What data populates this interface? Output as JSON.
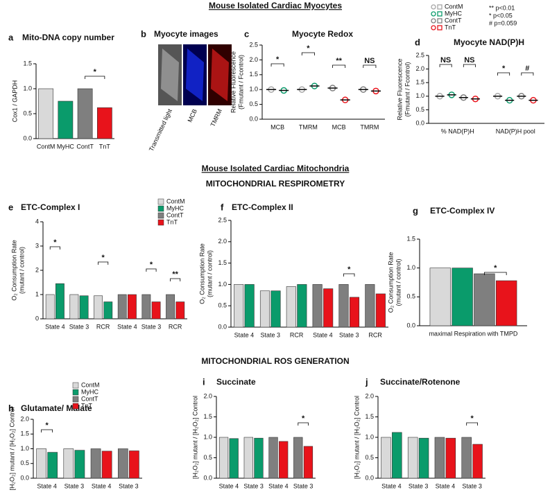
{
  "headings": [
    "Mouse Isolated Cardiac Myocytes",
    "Mouse Isolated Cardiac Mitochondria",
    "MITOCHONDRIAL RESPIROMETRY",
    "MITOCHONDRIAL ROS GENERATION"
  ],
  "significance": [
    "** p<0.01",
    "* p<0.05",
    "# p=0.059"
  ],
  "chart_data": [
    {
      "type": "bar",
      "panel": "a",
      "title": "Mito-DNA copy number",
      "ylabel": [
        "Cox1 / GAPDH"
      ],
      "categories": [
        "ContM",
        "MyHC",
        "ContT",
        "TnT"
      ],
      "values": [
        1.0,
        0.75,
        1.0,
        0.62
      ],
      "colors": [
        "#d9d9d9",
        "#0a9b6b",
        "#7f7f7f",
        "#e8131b"
      ],
      "ylim": [
        0,
        1.5
      ],
      "yticks": [
        {
          "value": 0,
          "label": "0.0"
        },
        0.5,
        {
          "value": 1,
          "label": "1.0"
        },
        1.5
      ],
      "annotations": [
        "*"
      ]
    },
    {
      "type": "images",
      "panel": "b",
      "title": "Myocyte images",
      "labels": [
        "Transmitted light",
        "MCB",
        "TMRM"
      ]
    },
    {
      "type": "dot",
      "panel": "c",
      "title": "Myocyte Redox",
      "ylabel": [
        "Relative Fluorescence",
        "(Fmutant / Fcontrol)"
      ],
      "categories": [
        "MCB",
        "TMRM",
        "MCB",
        "TMRM"
      ],
      "series": [
        {
          "name": "ContM",
          "color": "#a6a6a6",
          "values": [
            1.0,
            1.0,
            null,
            null
          ]
        },
        {
          "name": "MyHC",
          "color": "#0a9b6b",
          "values": [
            0.97,
            1.12,
            null,
            null
          ]
        },
        {
          "name": "ContT",
          "color": "#7f7f7f",
          "values": [
            null,
            null,
            1.05,
            1.0
          ]
        },
        {
          "name": "TnT",
          "color": "#e8131b",
          "values": [
            null,
            null,
            0.65,
            0.95
          ]
        }
      ],
      "ylim": [
        0,
        2.5
      ],
      "yticks": [
        {
          "value": 0,
          "label": "0.0"
        },
        0.5,
        {
          "value": 1,
          "label": "1.0"
        },
        1.5,
        {
          "value": 2,
          "label": "2.0"
        },
        2.5
      ],
      "annotations": [
        "*",
        "*",
        "**",
        "NS"
      ],
      "legend": true
    },
    {
      "type": "dot",
      "panel": "d",
      "title": "Myocyte NAD(P)H",
      "ylabel": [
        "Relative Fluorescence",
        "(Fmutant / Fcontrol)"
      ],
      "categories": [
        "% NAD(P)H",
        "NAD(P)H pool"
      ],
      "series": [
        {
          "name": "ContM",
          "color": "#a6a6a6",
          "values": [
            1.0,
            1.0
          ]
        },
        {
          "name": "MyHC",
          "color": "#0a9b6b",
          "values": [
            1.05,
            0.85
          ]
        },
        {
          "name": "ContT",
          "color": "#7f7f7f",
          "values": [
            0.95,
            1.0
          ]
        },
        {
          "name": "TnT",
          "color": "#e8131b",
          "values": [
            0.9,
            0.85
          ]
        }
      ],
      "ylim": [
        0,
        2.5
      ],
      "yticks": [
        {
          "value": 0,
          "label": "0.0"
        },
        0.5,
        {
          "value": 1,
          "label": "1.0"
        },
        1.5,
        {
          "value": 2,
          "label": "2.0"
        },
        2.5
      ],
      "annotations": [
        "NS",
        "NS",
        "*",
        "#"
      ]
    },
    {
      "type": "bar",
      "panel": "e",
      "title": "ETC-Complex I",
      "ylabel": [
        "O₂ Consumption Rate",
        "(mutant / control)"
      ],
      "categories": [
        "State 4",
        "State 3",
        "RCR",
        "State 4",
        "State 3",
        "RCR"
      ],
      "series": [
        {
          "name": "ContM",
          "color": "#d9d9d9",
          "values": [
            1.0,
            1.0,
            0.95,
            null,
            null,
            null
          ]
        },
        {
          "name": "MyHC",
          "color": "#0a9b6b",
          "values": [
            1.45,
            0.95,
            0.7,
            null,
            null,
            null
          ]
        },
        {
          "name": "ContT",
          "color": "#7f7f7f",
          "values": [
            null,
            null,
            null,
            1.0,
            1.0,
            1.0
          ]
        },
        {
          "name": "TnT",
          "color": "#e8131b",
          "values": [
            null,
            null,
            null,
            1.0,
            0.7,
            0.7
          ]
        }
      ],
      "ylim": [
        0,
        4
      ],
      "yticks": [
        0,
        1,
        2,
        3,
        4
      ],
      "annotations": [
        "*",
        "*",
        "*",
        "**"
      ],
      "legend": true
    },
    {
      "type": "bar",
      "panel": "f",
      "title": "ETC-Complex II",
      "ylabel": [
        "O₂ Consumption Rate",
        "(mutant / control)"
      ],
      "categories": [
        "State 4",
        "State 3",
        "RCR",
        "State 4",
        "State 3",
        "RCR"
      ],
      "series": [
        {
          "name": "ContM",
          "color": "#d9d9d9",
          "values": [
            1.0,
            0.85,
            0.95,
            null,
            null,
            null
          ]
        },
        {
          "name": "MyHC",
          "color": "#0a9b6b",
          "values": [
            1.0,
            0.85,
            1.0,
            null,
            null,
            null
          ]
        },
        {
          "name": "ContT",
          "color": "#7f7f7f",
          "values": [
            null,
            null,
            null,
            1.0,
            1.0,
            1.0
          ]
        },
        {
          "name": "TnT",
          "color": "#e8131b",
          "values": [
            null,
            null,
            null,
            0.9,
            0.7,
            0.78
          ]
        }
      ],
      "ylim": [
        0,
        2.5
      ],
      "yticks": [
        {
          "value": 0,
          "label": "0.0"
        },
        0.5,
        {
          "value": 1,
          "label": "1.0"
        },
        1.5,
        {
          "value": 2,
          "label": "2.0"
        },
        2.5
      ],
      "annotations": [
        "*"
      ]
    },
    {
      "type": "bar",
      "panel": "g",
      "title": "ETC-Complex IV",
      "ylabel": [
        "O₂ Consumption Rate",
        "(mutant / control)"
      ],
      "categories": [
        "maximal Respiration with TMPD"
      ],
      "series": [
        {
          "name": "ContM",
          "color": "#d9d9d9",
          "values": [
            1.0
          ]
        },
        {
          "name": "MyHC",
          "color": "#0a9b6b",
          "values": [
            1.0
          ]
        },
        {
          "name": "ContT",
          "color": "#7f7f7f",
          "values": [
            0.9
          ]
        },
        {
          "name": "TnT",
          "color": "#e8131b",
          "values": [
            0.78
          ]
        }
      ],
      "ylim": [
        0,
        1.5
      ],
      "yticks": [
        {
          "value": 0,
          "label": "0.0"
        },
        0.5,
        {
          "value": 1,
          "label": "1.0"
        },
        1.5
      ],
      "annotations": [
        "*"
      ]
    },
    {
      "type": "bar",
      "panel": "h",
      "title": "Glutamate/ Malate",
      "ylabel": [
        "[H₂O₂] mutant / [H₂O₂] Control"
      ],
      "categories": [
        "State 4",
        "State 3",
        "State 4",
        "State 3"
      ],
      "series": [
        {
          "name": "ContM",
          "color": "#d9d9d9",
          "values": [
            1.0,
            1.0,
            null,
            null
          ]
        },
        {
          "name": "MyHC",
          "color": "#0a9b6b",
          "values": [
            0.88,
            0.95,
            null,
            null
          ]
        },
        {
          "name": "ContT",
          "color": "#7f7f7f",
          "values": [
            null,
            null,
            1.0,
            1.0
          ]
        },
        {
          "name": "TnT",
          "color": "#e8131b",
          "values": [
            null,
            null,
            0.92,
            0.93
          ]
        }
      ],
      "ylim": [
        0,
        2
      ],
      "yticks": [
        {
          "value": 0,
          "label": "0.0"
        },
        0.5,
        {
          "value": 1,
          "label": "1.0"
        },
        1.5,
        {
          "value": 2,
          "label": "2.0"
        }
      ],
      "annotations": [
        "*"
      ],
      "legend": true
    },
    {
      "type": "bar",
      "panel": "i",
      "title": "Succinate",
      "ylabel": [
        "[H₂O₂] mutant / [H₂O₂] Control"
      ],
      "categories": [
        "State 4",
        "State 3",
        "State 4",
        "State 3"
      ],
      "series": [
        {
          "name": "ContM",
          "color": "#d9d9d9",
          "values": [
            1.0,
            1.0,
            null,
            null
          ]
        },
        {
          "name": "MyHC",
          "color": "#0a9b6b",
          "values": [
            0.97,
            0.98,
            null,
            null
          ]
        },
        {
          "name": "ContT",
          "color": "#7f7f7f",
          "values": [
            null,
            null,
            1.0,
            1.0
          ]
        },
        {
          "name": "TnT",
          "color": "#e8131b",
          "values": [
            null,
            null,
            0.9,
            0.78
          ]
        }
      ],
      "ylim": [
        0,
        2
      ],
      "yticks": [
        {
          "value": 0,
          "label": "0.0"
        },
        0.5,
        {
          "value": 1,
          "label": "1.0"
        },
        1.5,
        {
          "value": 2,
          "label": "2.0"
        }
      ],
      "annotations": [
        "*"
      ]
    },
    {
      "type": "bar",
      "panel": "j",
      "title": "Succinate/Rotenone",
      "ylabel": [
        "[H₂O₂] mutant / [H₂O₂] Control"
      ],
      "categories": [
        "State 4",
        "State 3",
        "State 4",
        "State 3"
      ],
      "series": [
        {
          "name": "ContM",
          "color": "#d9d9d9",
          "values": [
            1.0,
            1.0,
            null,
            null
          ]
        },
        {
          "name": "MyHC",
          "color": "#0a9b6b",
          "values": [
            1.12,
            0.98,
            null,
            null
          ]
        },
        {
          "name": "ContT",
          "color": "#7f7f7f",
          "values": [
            null,
            null,
            1.0,
            1.0
          ]
        },
        {
          "name": "TnT",
          "color": "#e8131b",
          "values": [
            null,
            null,
            0.98,
            0.83
          ]
        }
      ],
      "ylim": [
        0,
        2
      ],
      "yticks": [
        {
          "value": 0,
          "label": "0.0"
        },
        0.5,
        {
          "value": 1,
          "label": "1.0"
        },
        1.5,
        {
          "value": 2,
          "label": "2.0"
        }
      ],
      "annotations": [
        "*"
      ]
    }
  ]
}
